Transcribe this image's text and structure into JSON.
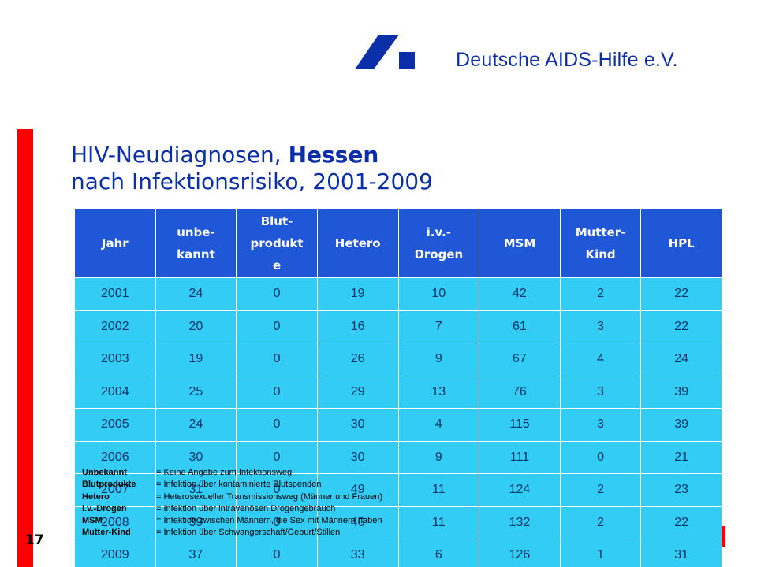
{
  "header": {
    "org_name": "Deutsche AIDS-Hilfe e.V.",
    "logo_color": "#0b2fa8"
  },
  "title": {
    "line1_prefix": "HIV-Neudiagnosen, ",
    "line1_bold": "Hessen",
    "line2": "nach Infektionsrisiko, 2001-2009"
  },
  "table": {
    "columns": [
      "Jahr",
      "unbe-\nkannt",
      "Blut-\nprodukt\ne",
      "Hetero",
      "i.v.-\nDrogen",
      "MSM",
      "Mutter-\nKind",
      "HPL"
    ],
    "rows": [
      [
        "2001",
        "24",
        "0",
        "19",
        "10",
        "42",
        "2",
        "22"
      ],
      [
        "2002",
        "20",
        "0",
        "16",
        "7",
        "61",
        "3",
        "22"
      ],
      [
        "2003",
        "19",
        "0",
        "26",
        "9",
        "67",
        "4",
        "24"
      ],
      [
        "2004",
        "25",
        "0",
        "29",
        "13",
        "76",
        "3",
        "39"
      ],
      [
        "2005",
        "24",
        "0",
        "30",
        "4",
        "115",
        "3",
        "39"
      ],
      [
        "2006",
        "30",
        "0",
        "30",
        "9",
        "111",
        "0",
        "21"
      ],
      [
        "2007",
        "31",
        "0",
        "49",
        "11",
        "124",
        "2",
        "23"
      ],
      [
        "2008",
        "39",
        "0",
        "46",
        "11",
        "132",
        "2",
        "22"
      ],
      [
        "2009",
        "37",
        "0",
        "33",
        "6",
        "126",
        "1",
        "31"
      ]
    ],
    "header_color": "#1f57d6",
    "cell_color": "#33ccf5"
  },
  "legend": [
    {
      "term": "Unbekannt",
      "definition": "= Keine Angabe zum Infektionsweg"
    },
    {
      "term": "Blutprodukte",
      "definition": "= Infektion über kontaminierte Blutspenden"
    },
    {
      "term": "Hetero",
      "definition": "= Heterosexueller Transmissionsweg (Männer und Frauen)"
    },
    {
      "term": "i.v.-Drogen",
      "definition": "= Infektion über intravenösen Drogengebrauch"
    },
    {
      "term": "MSM",
      "definition": "= Infektion zwischen Männern, die Sex mit Männern haben"
    },
    {
      "term": "Mutter-Kind",
      "definition": "= Infektion über Schwangerschaft/Geburt/Stillen"
    }
  ],
  "footer": {
    "page_number": "17"
  },
  "colors": {
    "accent_red": "#ff0000",
    "title_blue": "#0b2fa8"
  }
}
